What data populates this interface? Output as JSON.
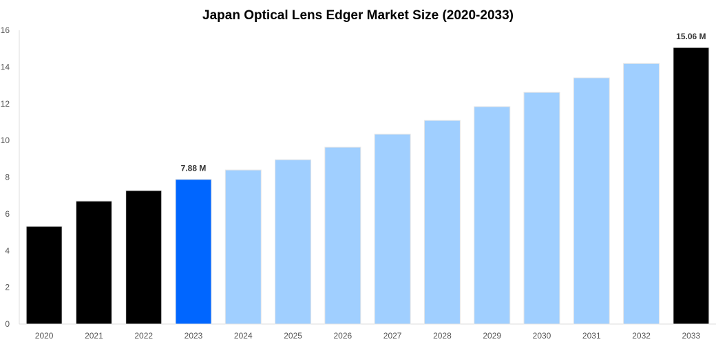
{
  "chart_data": {
    "type": "bar",
    "title": "Japan Optical Lens Edger Market Size (2020-2033)",
    "xlabel": "",
    "ylabel": "",
    "ylim": [
      0,
      16
    ],
    "yticks": [
      0,
      2,
      4,
      6,
      8,
      10,
      12,
      14,
      16
    ],
    "grid": false,
    "categories": [
      "2020",
      "2021",
      "2022",
      "2023",
      "2024",
      "2025",
      "2026",
      "2027",
      "2028",
      "2029",
      "2030",
      "2031",
      "2032",
      "2033"
    ],
    "values": [
      5.32,
      6.7,
      7.27,
      7.88,
      8.39,
      8.95,
      9.63,
      10.34,
      11.09,
      11.84,
      12.62,
      13.41,
      14.19,
      15.06
    ],
    "bar_colors": [
      "#000000",
      "#000000",
      "#000000",
      "#0066ff",
      "#a0cfff",
      "#a0cfff",
      "#a0cfff",
      "#a0cfff",
      "#a0cfff",
      "#a0cfff",
      "#a0cfff",
      "#a0cfff",
      "#a0cfff",
      "#000000"
    ],
    "data_labels": [
      {
        "category": "2023",
        "text": "7.88 M"
      },
      {
        "category": "2033",
        "text": "15.06 M"
      }
    ]
  }
}
